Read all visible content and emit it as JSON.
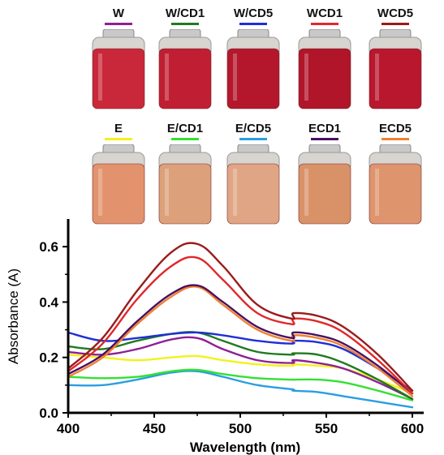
{
  "vials": {
    "row1": [
      {
        "label": "W",
        "line_color": "#8e1f97",
        "liquid": "#c8283a",
        "vial_top_glass": "#c9c9c9"
      },
      {
        "label": "W/CD1",
        "line_color": "#1f7a1f",
        "liquid": "#c01e32",
        "vial_top_glass": "#c9c9c9"
      },
      {
        "label": "W/CD5",
        "line_color": "#1f2fd6",
        "liquid": "#b4172c",
        "vial_top_glass": "#c9c9c9"
      },
      {
        "label": "WCD1",
        "line_color": "#e0282b",
        "liquid": "#b0152a",
        "vial_top_glass": "#c9c9c9"
      },
      {
        "label": "WCD5",
        "line_color": "#9b1b1b",
        "liquid": "#b8172e",
        "vial_top_glass": "#c9c9c9"
      }
    ],
    "row2": [
      {
        "label": "E",
        "line_color": "#f2f21d",
        "liquid": "#e2936d",
        "vial_top_glass": "#c9c9c9"
      },
      {
        "label": "E/CD1",
        "line_color": "#33e033",
        "liquid": "#dca07a",
        "vial_top_glass": "#c9c9c9"
      },
      {
        "label": "E/CD5",
        "line_color": "#2a9ee0",
        "liquid": "#e0a585",
        "vial_top_glass": "#c9c9c9"
      },
      {
        "label": "ECD1",
        "line_color": "#4a1060",
        "liquid": "#d99268",
        "vial_top_glass": "#c9c9c9"
      },
      {
        "label": "ECD5",
        "line_color": "#f08030",
        "liquid": "#de946d",
        "vial_top_glass": "#c9c9c9"
      }
    ]
  },
  "chart_data": {
    "type": "line",
    "xlabel": "Wavelength (nm)",
    "ylabel": "Absorbance (A)",
    "xlim": [
      400,
      600
    ],
    "ylim": [
      0.0,
      0.7
    ],
    "xticks": [
      400,
      450,
      500,
      550,
      600
    ],
    "yticks": [
      0.0,
      0.2,
      0.4,
      0.6
    ],
    "ytick_labels": [
      "0.0",
      "0.2",
      "0.4",
      "0.6"
    ],
    "grid": false,
    "legend": "none",
    "series": [
      {
        "name": "WCD5",
        "color": "#9b1b1b",
        "x": [
          400,
          420,
          440,
          460,
          475,
          490,
          510,
          530,
          531,
          545,
          560,
          580,
          600
        ],
        "y": [
          0.16,
          0.27,
          0.44,
          0.58,
          0.61,
          0.53,
          0.39,
          0.34,
          0.36,
          0.35,
          0.31,
          0.21,
          0.08
        ]
      },
      {
        "name": "WCD1",
        "color": "#e0282b",
        "x": [
          400,
          420,
          440,
          460,
          475,
          490,
          510,
          530,
          531,
          545,
          560,
          580,
          600
        ],
        "y": [
          0.15,
          0.25,
          0.41,
          0.53,
          0.56,
          0.48,
          0.36,
          0.32,
          0.34,
          0.33,
          0.29,
          0.19,
          0.07
        ]
      },
      {
        "name": "ECD1",
        "color": "#4a1060",
        "x": [
          400,
          420,
          440,
          460,
          475,
          490,
          510,
          530,
          531,
          545,
          560,
          580,
          600
        ],
        "y": [
          0.14,
          0.21,
          0.33,
          0.43,
          0.46,
          0.4,
          0.31,
          0.27,
          0.29,
          0.28,
          0.25,
          0.17,
          0.07
        ]
      },
      {
        "name": "ECD5",
        "color": "#f08030",
        "x": [
          400,
          420,
          440,
          460,
          475,
          490,
          510,
          530,
          531,
          545,
          560,
          580,
          600
        ],
        "y": [
          0.13,
          0.2,
          0.32,
          0.42,
          0.455,
          0.39,
          0.3,
          0.26,
          0.28,
          0.27,
          0.24,
          0.16,
          0.06
        ]
      },
      {
        "name": "W/CD5",
        "color": "#1f2fd6",
        "x": [
          400,
          420,
          440,
          460,
          475,
          490,
          510,
          530,
          531,
          545,
          560,
          580,
          600
        ],
        "y": [
          0.29,
          0.26,
          0.27,
          0.285,
          0.29,
          0.28,
          0.26,
          0.25,
          0.26,
          0.255,
          0.23,
          0.16,
          0.08
        ]
      },
      {
        "name": "W/CD1",
        "color": "#1f7a1f",
        "x": [
          400,
          420,
          440,
          460,
          475,
          490,
          510,
          530,
          531,
          545,
          560,
          580,
          600
        ],
        "y": [
          0.24,
          0.23,
          0.26,
          0.285,
          0.29,
          0.26,
          0.22,
          0.21,
          0.215,
          0.21,
          0.18,
          0.12,
          0.05
        ]
      },
      {
        "name": "W",
        "color": "#8e1f97",
        "x": [
          400,
          420,
          440,
          460,
          475,
          490,
          510,
          530,
          531,
          545,
          560,
          580,
          600
        ],
        "y": [
          0.22,
          0.21,
          0.23,
          0.265,
          0.27,
          0.23,
          0.19,
          0.18,
          0.19,
          0.18,
          0.16,
          0.11,
          0.05
        ]
      },
      {
        "name": "E",
        "color": "#f2f21d",
        "x": [
          400,
          420,
          440,
          460,
          475,
          490,
          510,
          530,
          531,
          545,
          560,
          580,
          600
        ],
        "y": [
          0.21,
          0.2,
          0.19,
          0.2,
          0.205,
          0.19,
          0.175,
          0.17,
          0.175,
          0.17,
          0.16,
          0.12,
          0.07
        ]
      },
      {
        "name": "E/CD1",
        "color": "#33e033",
        "x": [
          400,
          420,
          440,
          460,
          475,
          490,
          510,
          530,
          531,
          545,
          560,
          580,
          600
        ],
        "y": [
          0.13,
          0.125,
          0.13,
          0.15,
          0.155,
          0.14,
          0.125,
          0.12,
          0.12,
          0.12,
          0.11,
          0.08,
          0.045
        ]
      },
      {
        "name": "E/CD5",
        "color": "#2a9ee0",
        "x": [
          400,
          420,
          440,
          460,
          475,
          490,
          510,
          530,
          531,
          545,
          560,
          580,
          600
        ],
        "y": [
          0.1,
          0.1,
          0.12,
          0.145,
          0.15,
          0.13,
          0.1,
          0.085,
          0.08,
          0.075,
          0.06,
          0.04,
          0.02
        ]
      }
    ]
  }
}
